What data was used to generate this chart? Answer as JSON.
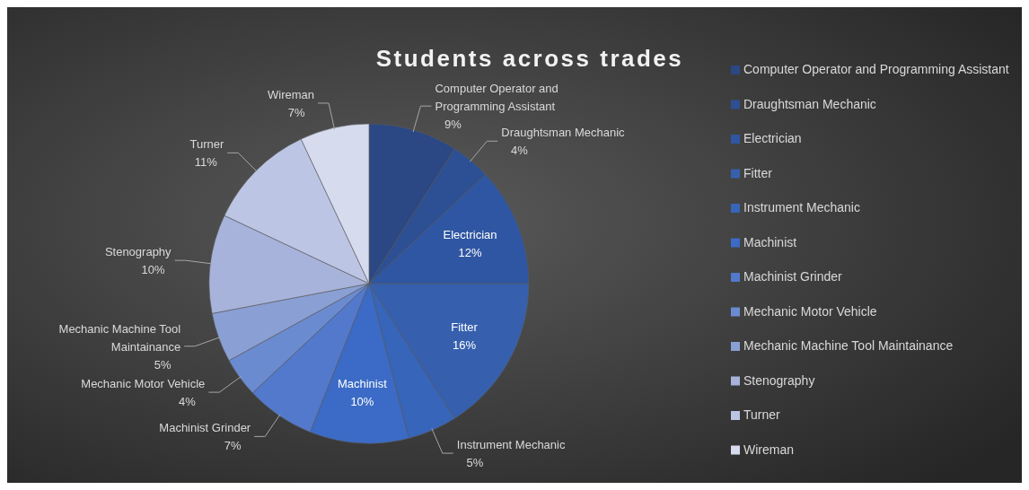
{
  "chart_data": {
    "type": "pie",
    "title": "Students across trades",
    "categories": [
      "Computer Operator and Programming Assistant",
      "Draughtsman Mechanic",
      "Electrician",
      "Fitter",
      "Instrument Mechanic",
      "Machinist",
      "Machinist Grinder",
      "Mechanic Motor Vehicle",
      "Mechanic Machine Tool Maintainance",
      "Stenography",
      "Turner",
      "Wireman"
    ],
    "values": [
      9,
      4,
      12,
      16,
      5,
      10,
      7,
      4,
      5,
      10,
      11,
      7
    ],
    "colors": [
      "#2b4784",
      "#2d4f93",
      "#2f56a2",
      "#3660ae",
      "#3665ba",
      "#3b6bc6",
      "#5279cc",
      "#6b8bd1",
      "#8a9fd4",
      "#a7b3da",
      "#bcc5e4",
      "#d6dbee"
    ],
    "value_labels": [
      "9%",
      "4%",
      "12%",
      "16%",
      "5%",
      "10%",
      "7%",
      "4%",
      "5%",
      "10%",
      "11%",
      "7%"
    ],
    "legend": "right"
  }
}
